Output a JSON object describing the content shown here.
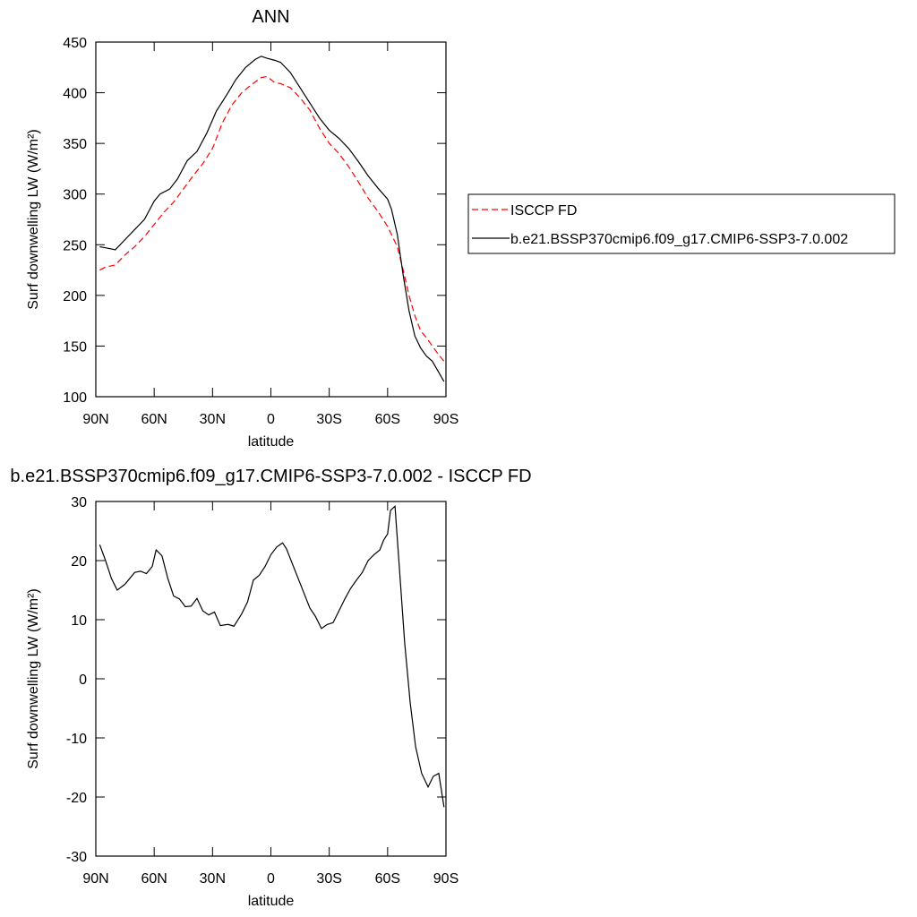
{
  "chart_data": [
    {
      "type": "line",
      "title": "ANN",
      "xlabel": "latitude",
      "ylabel": "Surf downwelling LW (W/m²)",
      "xlim": [
        90,
        -90
      ],
      "ylim": [
        100,
        450
      ],
      "xticks": [
        {
          "value": 90,
          "label": "90N"
        },
        {
          "value": 60,
          "label": "60N"
        },
        {
          "value": 30,
          "label": "30N"
        },
        0,
        {
          "value": -30,
          "label": "30S"
        },
        {
          "value": -60,
          "label": "60S"
        },
        {
          "value": -90,
          "label": "90S"
        }
      ],
      "yticks": [
        100,
        150,
        200,
        250,
        300,
        350,
        400,
        450
      ],
      "legend": "right",
      "series": [
        {
          "name": "ISCCP FD",
          "color": "#ff0000",
          "linestyle": "dashed",
          "x": [
            88,
            85,
            80,
            75,
            70,
            65,
            60,
            55,
            50,
            45,
            40,
            35,
            30,
            25,
            20,
            15,
            10,
            5,
            2,
            -2,
            -5,
            -10,
            -15,
            -20,
            -25,
            -30,
            -35,
            -40,
            -45,
            -50,
            -55,
            -60,
            -65,
            -68,
            -71,
            -74,
            -77,
            -80,
            -83,
            -86,
            -89
          ],
          "values": [
            225,
            228,
            230,
            240,
            248,
            258,
            270,
            282,
            292,
            305,
            318,
            330,
            345,
            370,
            388,
            400,
            408,
            415,
            416,
            410,
            409,
            405,
            395,
            383,
            365,
            350,
            340,
            327,
            312,
            296,
            283,
            268,
            248,
            225,
            200,
            180,
            165,
            158,
            150,
            142,
            135
          ]
        },
        {
          "name": "b.e21.BSSP370cmip6.f09_g17.CMIP6-SSP3-7.0.002",
          "color": "#000000",
          "linestyle": "solid",
          "x": [
            88,
            85,
            80,
            75,
            70,
            65,
            60,
            57,
            52,
            48,
            43,
            38,
            33,
            28,
            23,
            18,
            13,
            8,
            5,
            2,
            -2,
            -5,
            -10,
            -15,
            -20,
            -25,
            -30,
            -35,
            -40,
            -45,
            -50,
            -55,
            -60,
            -62,
            -65,
            -68,
            -71,
            -74,
            -77,
            -80,
            -83,
            -86,
            -89
          ],
          "values": [
            248,
            247,
            245,
            255,
            265,
            275,
            293,
            300,
            305,
            315,
            333,
            342,
            360,
            382,
            397,
            413,
            425,
            433,
            436,
            434,
            432,
            430,
            420,
            405,
            390,
            375,
            363,
            355,
            345,
            332,
            318,
            306,
            295,
            285,
            260,
            220,
            185,
            160,
            148,
            140,
            135,
            125,
            115
          ]
        }
      ]
    },
    {
      "type": "line",
      "title": "b.e21.BSSP370cmip6.f09_g17.CMIP6-SSP3-7.0.002 - ISCCP FD",
      "xlabel": "latitude",
      "ylabel": "Surf downwelling LW (W/m²)",
      "xlim": [
        90,
        -90
      ],
      "ylim": [
        -30,
        30
      ],
      "xticks": [
        {
          "value": 90,
          "label": "90N"
        },
        {
          "value": 60,
          "label": "60N"
        },
        {
          "value": 30,
          "label": "30N"
        },
        0,
        {
          "value": -30,
          "label": "30S"
        },
        {
          "value": -60,
          "label": "60S"
        },
        {
          "value": -90,
          "label": "90S"
        }
      ],
      "yticks": [
        -30,
        -20,
        -10,
        0,
        10,
        20,
        30
      ],
      "series": [
        {
          "color": "#000000",
          "linestyle": "solid",
          "x": [
            88,
            85,
            82,
            79,
            75,
            70,
            67,
            64,
            61,
            59,
            56,
            53,
            50,
            47,
            44,
            41,
            38,
            35,
            32,
            29,
            26,
            22,
            19,
            15,
            12,
            9,
            6,
            3,
            0,
            -3,
            -6,
            -8,
            -11,
            -14,
            -17,
            -20,
            -23,
            -26,
            -29,
            -32,
            -35,
            -38,
            -41,
            -44,
            -47,
            -50,
            -53,
            -56,
            -58,
            -60,
            -61.5,
            -63.8,
            -66,
            -68.8,
            -71.6,
            -74.4,
            -77.5,
            -80.8,
            -83.5,
            -86.3,
            -89
          ],
          "values": [
            22.7,
            20,
            17,
            15,
            16,
            18,
            18.2,
            17.8,
            19,
            21.8,
            20.8,
            17,
            14,
            13.5,
            12.2,
            12.3,
            13.6,
            11.5,
            10.8,
            11.3,
            9,
            9.2,
            8.9,
            11,
            13,
            16.7,
            17.5,
            19,
            21,
            22.3,
            23,
            22,
            19.5,
            17,
            14.5,
            12,
            10.5,
            8.5,
            9.2,
            9.5,
            11.5,
            13.5,
            15.3,
            16.7,
            18,
            20,
            21,
            21.8,
            23.5,
            24.5,
            28.5,
            29.2,
            19,
            6,
            -4,
            -11.5,
            -16,
            -18.3,
            -16.5,
            -16,
            -21.7
          ]
        }
      ]
    }
  ]
}
